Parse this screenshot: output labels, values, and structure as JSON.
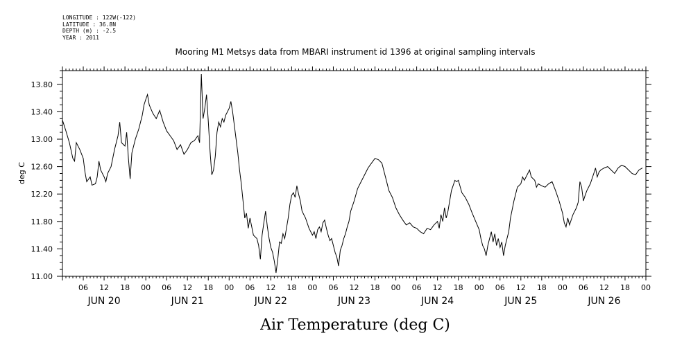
{
  "header_info": {
    "longitude": "LONGITUDE : 122W(-122)",
    "latitude": "LATITUDE : 36.8N",
    "depth": "DEPTH (m) : -2.5",
    "year": "YEAR : 2011"
  },
  "chart_data": {
    "type": "line",
    "title": "Mooring M1 Metsys data from MBARI instrument id 1396 at original sampling intervals",
    "bottom_title": "Air Temperature (deg C)",
    "ylabel": "deg C",
    "xlabel": "",
    "ylim": [
      11.0,
      14.0
    ],
    "xlim_hours": [
      0,
      167
    ],
    "y_ticks": [
      "11.00",
      "11.40",
      "11.80",
      "12.20",
      "12.60",
      "13.00",
      "13.40",
      "13.80"
    ],
    "hour_tick_labels": [
      {
        "hour": 6,
        "label": "06"
      },
      {
        "hour": 12,
        "label": "12"
      },
      {
        "hour": 18,
        "label": "18"
      },
      {
        "hour": 24,
        "label": "00"
      },
      {
        "hour": 30,
        "label": "06"
      },
      {
        "hour": 36,
        "label": "12"
      },
      {
        "hour": 42,
        "label": "18"
      },
      {
        "hour": 48,
        "label": "00"
      },
      {
        "hour": 54,
        "label": "06"
      },
      {
        "hour": 60,
        "label": "12"
      },
      {
        "hour": 66,
        "label": "18"
      },
      {
        "hour": 72,
        "label": "00"
      },
      {
        "hour": 78,
        "label": "06"
      },
      {
        "hour": 84,
        "label": "12"
      },
      {
        "hour": 90,
        "label": "18"
      },
      {
        "hour": 96,
        "label": "00"
      },
      {
        "hour": 102,
        "label": "06"
      },
      {
        "hour": 108,
        "label": "12"
      },
      {
        "hour": 114,
        "label": "18"
      },
      {
        "hour": 120,
        "label": "00"
      },
      {
        "hour": 126,
        "label": "06"
      },
      {
        "hour": 132,
        "label": "12"
      },
      {
        "hour": 138,
        "label": "18"
      },
      {
        "hour": 144,
        "label": "00"
      },
      {
        "hour": 150,
        "label": "06"
      },
      {
        "hour": 156,
        "label": "12"
      },
      {
        "hour": 162,
        "label": "18"
      },
      {
        "hour": 168,
        "label": "00"
      }
    ],
    "date_labels": [
      {
        "hour": 12,
        "label": "JUN 20"
      },
      {
        "hour": 36,
        "label": "JUN 21"
      },
      {
        "hour": 60,
        "label": "JUN 22"
      },
      {
        "hour": 84,
        "label": "JUN 23"
      },
      {
        "hour": 108,
        "label": "JUN 24"
      },
      {
        "hour": 132,
        "label": "JUN 25"
      },
      {
        "hour": 156,
        "label": "JUN 26"
      }
    ],
    "series": [
      {
        "color": "#000000",
        "points": [
          [
            0,
            13.28
          ],
          [
            1,
            13.12
          ],
          [
            2,
            12.95
          ],
          [
            3,
            12.72
          ],
          [
            3.5,
            12.68
          ],
          [
            4,
            12.95
          ],
          [
            5,
            12.85
          ],
          [
            6,
            12.72
          ],
          [
            6.5,
            12.52
          ],
          [
            7,
            12.38
          ],
          [
            8,
            12.45
          ],
          [
            8.5,
            12.33
          ],
          [
            9.5,
            12.35
          ],
          [
            10,
            12.45
          ],
          [
            10.5,
            12.68
          ],
          [
            11,
            12.55
          ],
          [
            12,
            12.45
          ],
          [
            12.5,
            12.38
          ],
          [
            13,
            12.5
          ],
          [
            14,
            12.6
          ],
          [
            15,
            12.85
          ],
          [
            16,
            13.05
          ],
          [
            16.5,
            13.25
          ],
          [
            17,
            12.95
          ],
          [
            18,
            12.9
          ],
          [
            18.5,
            13.1
          ],
          [
            19,
            12.72
          ],
          [
            19.5,
            12.42
          ],
          [
            20,
            12.8
          ],
          [
            21,
            13.0
          ],
          [
            22,
            13.15
          ],
          [
            23,
            13.35
          ],
          [
            23.5,
            13.5
          ],
          [
            24,
            13.58
          ],
          [
            24.5,
            13.65
          ],
          [
            25,
            13.5
          ],
          [
            26,
            13.38
          ],
          [
            27,
            13.3
          ],
          [
            28,
            13.42
          ],
          [
            29,
            13.25
          ],
          [
            30,
            13.12
          ],
          [
            31,
            13.05
          ],
          [
            32,
            12.98
          ],
          [
            33,
            12.85
          ],
          [
            34,
            12.92
          ],
          [
            35,
            12.78
          ],
          [
            36,
            12.85
          ],
          [
            37,
            12.95
          ],
          [
            38,
            12.98
          ],
          [
            39,
            13.05
          ],
          [
            39.5,
            12.95
          ],
          [
            40,
            13.95
          ],
          [
            40.5,
            13.3
          ],
          [
            41,
            13.45
          ],
          [
            41.5,
            13.65
          ],
          [
            42,
            13.25
          ],
          [
            42.5,
            12.82
          ],
          [
            43,
            12.48
          ],
          [
            43.5,
            12.55
          ],
          [
            44,
            12.75
          ],
          [
            44.5,
            13.1
          ],
          [
            45,
            13.25
          ],
          [
            45.5,
            13.18
          ],
          [
            46,
            13.3
          ],
          [
            46.5,
            13.25
          ],
          [
            47,
            13.35
          ],
          [
            48,
            13.45
          ],
          [
            48.5,
            13.55
          ],
          [
            49,
            13.4
          ],
          [
            49.5,
            13.2
          ],
          [
            50,
            13.0
          ],
          [
            50.5,
            12.8
          ],
          [
            51,
            12.55
          ],
          [
            51.5,
            12.35
          ],
          [
            52,
            12.1
          ],
          [
            52.5,
            11.85
          ],
          [
            53,
            11.92
          ],
          [
            53.5,
            11.7
          ],
          [
            54,
            11.85
          ],
          [
            55,
            11.6
          ],
          [
            56,
            11.55
          ],
          [
            56.5,
            11.45
          ],
          [
            57,
            11.25
          ],
          [
            57.5,
            11.6
          ],
          [
            58,
            11.78
          ],
          [
            58.5,
            11.95
          ],
          [
            59,
            11.72
          ],
          [
            59.5,
            11.55
          ],
          [
            60,
            11.42
          ],
          [
            60.5,
            11.35
          ],
          [
            61,
            11.22
          ],
          [
            61.5,
            11.05
          ],
          [
            62,
            11.25
          ],
          [
            62.5,
            11.5
          ],
          [
            63,
            11.48
          ],
          [
            63.5,
            11.62
          ],
          [
            64,
            11.55
          ],
          [
            64.5,
            11.7
          ],
          [
            65,
            11.85
          ],
          [
            65.5,
            12.05
          ],
          [
            66,
            12.18
          ],
          [
            66.5,
            12.22
          ],
          [
            67,
            12.15
          ],
          [
            67.5,
            12.32
          ],
          [
            68,
            12.2
          ],
          [
            68.5,
            12.1
          ],
          [
            69,
            11.95
          ],
          [
            70,
            11.85
          ],
          [
            71,
            11.7
          ],
          [
            72,
            11.6
          ],
          [
            72.5,
            11.65
          ],
          [
            73,
            11.55
          ],
          [
            73.5,
            11.68
          ],
          [
            74,
            11.72
          ],
          [
            74.5,
            11.65
          ],
          [
            75,
            11.78
          ],
          [
            75.5,
            11.82
          ],
          [
            76,
            11.7
          ],
          [
            76.5,
            11.6
          ],
          [
            77,
            11.52
          ],
          [
            77.5,
            11.55
          ],
          [
            78,
            11.45
          ],
          [
            78.5,
            11.35
          ],
          [
            79,
            11.28
          ],
          [
            79.5,
            11.15
          ],
          [
            80,
            11.38
          ],
          [
            80.5,
            11.45
          ],
          [
            81,
            11.55
          ],
          [
            81.5,
            11.62
          ],
          [
            82,
            11.72
          ],
          [
            82.5,
            11.8
          ],
          [
            83,
            11.95
          ],
          [
            84,
            12.1
          ],
          [
            85,
            12.28
          ],
          [
            86,
            12.38
          ],
          [
            87,
            12.48
          ],
          [
            88,
            12.58
          ],
          [
            89,
            12.65
          ],
          [
            90,
            12.72
          ],
          [
            91,
            12.7
          ],
          [
            92,
            12.65
          ],
          [
            93,
            12.45
          ],
          [
            94,
            12.25
          ],
          [
            95,
            12.15
          ],
          [
            96,
            12.0
          ],
          [
            97,
            11.9
          ],
          [
            98,
            11.82
          ],
          [
            99,
            11.75
          ],
          [
            100,
            11.78
          ],
          [
            101,
            11.72
          ],
          [
            102,
            11.7
          ],
          [
            103,
            11.65
          ],
          [
            104,
            11.62
          ],
          [
            105,
            11.7
          ],
          [
            106,
            11.68
          ],
          [
            107,
            11.75
          ],
          [
            108,
            11.8
          ],
          [
            108.5,
            11.7
          ],
          [
            109,
            11.9
          ],
          [
            109.5,
            11.8
          ],
          [
            110,
            12.0
          ],
          [
            110.5,
            11.85
          ],
          [
            111,
            11.95
          ],
          [
            112,
            12.25
          ],
          [
            113,
            12.4
          ],
          [
            113.5,
            12.38
          ],
          [
            114,
            12.4
          ],
          [
            115,
            12.22
          ],
          [
            116,
            12.15
          ],
          [
            117,
            12.05
          ],
          [
            118,
            11.92
          ],
          [
            119,
            11.8
          ],
          [
            120,
            11.68
          ],
          [
            120.5,
            11.55
          ],
          [
            121,
            11.45
          ],
          [
            121.5,
            11.4
          ],
          [
            122,
            11.3
          ],
          [
            122.5,
            11.45
          ],
          [
            123,
            11.55
          ],
          [
            123.5,
            11.65
          ],
          [
            124,
            11.5
          ],
          [
            124.5,
            11.62
          ],
          [
            125,
            11.45
          ],
          [
            125.5,
            11.55
          ],
          [
            126,
            11.42
          ],
          [
            126.5,
            11.5
          ],
          [
            127,
            11.3
          ],
          [
            127.5,
            11.45
          ],
          [
            128,
            11.55
          ],
          [
            128.5,
            11.65
          ],
          [
            129,
            11.85
          ],
          [
            130,
            12.1
          ],
          [
            131,
            12.3
          ],
          [
            132,
            12.35
          ],
          [
            132.5,
            12.45
          ],
          [
            133,
            12.4
          ],
          [
            134,
            12.5
          ],
          [
            134.5,
            12.55
          ],
          [
            135,
            12.45
          ],
          [
            136,
            12.4
          ],
          [
            136.5,
            12.3
          ],
          [
            137,
            12.35
          ],
          [
            138,
            12.32
          ],
          [
            139,
            12.3
          ],
          [
            140,
            12.35
          ],
          [
            141,
            12.38
          ],
          [
            142,
            12.25
          ],
          [
            143,
            12.1
          ],
          [
            144,
            11.92
          ],
          [
            144.5,
            11.78
          ],
          [
            145,
            11.72
          ],
          [
            145.5,
            11.85
          ],
          [
            146,
            11.75
          ],
          [
            147,
            11.9
          ],
          [
            148,
            12.0
          ],
          [
            148.5,
            12.08
          ],
          [
            149,
            12.38
          ],
          [
            149.5,
            12.3
          ],
          [
            150,
            12.1
          ],
          [
            150.5,
            12.18
          ],
          [
            151,
            12.25
          ],
          [
            152,
            12.35
          ],
          [
            153,
            12.5
          ],
          [
            153.5,
            12.58
          ],
          [
            154,
            12.45
          ],
          [
            154.5,
            12.52
          ],
          [
            155,
            12.55
          ],
          [
            156,
            12.58
          ],
          [
            157,
            12.6
          ],
          [
            158,
            12.55
          ],
          [
            159,
            12.5
          ],
          [
            160,
            12.58
          ],
          [
            161,
            12.62
          ],
          [
            162,
            12.6
          ],
          [
            163,
            12.55
          ],
          [
            164,
            12.5
          ],
          [
            165,
            12.48
          ],
          [
            166,
            12.55
          ],
          [
            167,
            12.58
          ]
        ]
      }
    ]
  }
}
